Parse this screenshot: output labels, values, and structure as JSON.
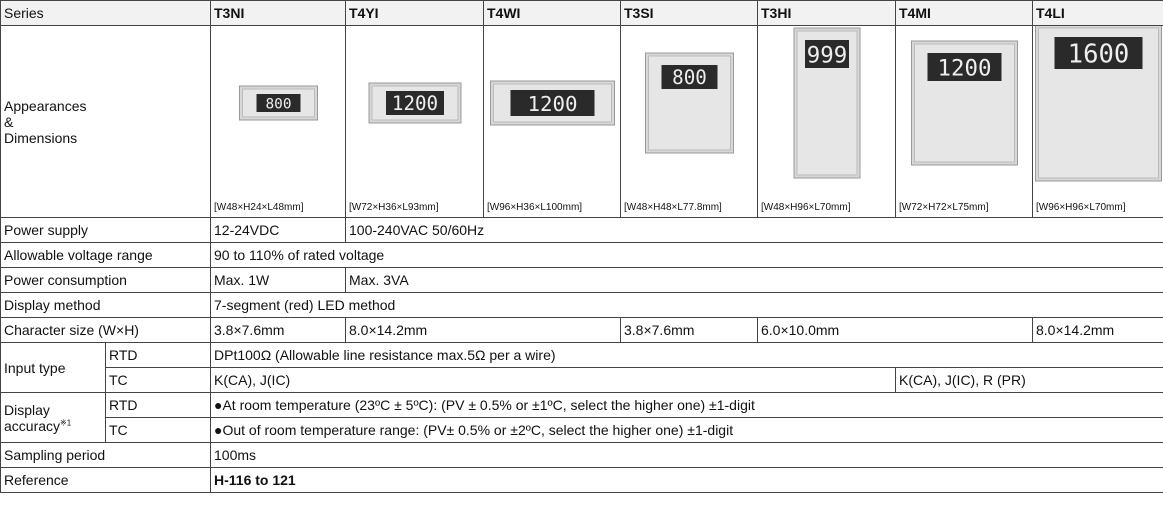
{
  "header": {
    "label": "Series",
    "series": [
      "T3NI",
      "T4YI",
      "T4WI",
      "T3SI",
      "T3HI",
      "T4MI",
      "T4LI"
    ]
  },
  "appearances": {
    "label": [
      "Appearances",
      "&",
      "Dimensions"
    ],
    "items": [
      {
        "display": "800",
        "dims": "[W48×H24×L48mm]"
      },
      {
        "display": "1200",
        "dims": "[W72×H36×L93mm]"
      },
      {
        "display": "1200",
        "dims": "[W96×H36×L100mm]"
      },
      {
        "display": "800",
        "dims": "[W48×H48×L77.8mm]"
      },
      {
        "display": "999",
        "dims": "[W48×H96×L70mm]"
      },
      {
        "display": "1200",
        "dims": "[W72×H72×L75mm]"
      },
      {
        "display": "1600",
        "dims": "[W96×H96×L70mm]"
      }
    ]
  },
  "power_supply": {
    "label": "Power supply",
    "cells": [
      "12-24VDC",
      "100-240VAC 50/60Hz"
    ]
  },
  "voltage_range": {
    "label": "Allowable voltage range",
    "cells": [
      "90 to 110% of rated voltage"
    ]
  },
  "power_consumption": {
    "label": "Power consumption",
    "cells": [
      "Max. 1W",
      "Max. 3VA"
    ]
  },
  "display_method": {
    "label": "Display method",
    "cells": [
      "7-segment (red) LED method"
    ]
  },
  "character_size": {
    "label": "Character size (W×H)",
    "cells": [
      "3.8×7.6mm",
      "8.0×14.2mm",
      "3.8×7.6mm",
      "6.0×10.0mm",
      "8.0×14.2mm"
    ]
  },
  "input_type": {
    "label": "Input type",
    "rtd": {
      "label": "RTD",
      "cells": [
        "DPt100Ω (Allowable line resistance max.5Ω per a wire)"
      ]
    },
    "tc": {
      "label": "TC",
      "cells": [
        "K(CA), J(IC)",
        "K(CA), J(IC), R (PR)"
      ]
    }
  },
  "display_accuracy": {
    "label": "Display accuracy",
    "note": "※1",
    "rtd": {
      "label": "RTD",
      "cells": [
        "●At room temperature (23ºC ± 5ºC): (PV ± 0.5% or ±1ºC, select the higher one) ±1-digit"
      ]
    },
    "tc": {
      "label": "TC",
      "cells": [
        "●Out of room temperature range: (PV± 0.5% or ±2ºC, select the higher one) ±1-digit"
      ]
    }
  },
  "sampling_period": {
    "label": "Sampling period",
    "cells": [
      "100ms"
    ]
  },
  "reference": {
    "label": "Reference",
    "cells": [
      "H-116 to 121"
    ]
  }
}
